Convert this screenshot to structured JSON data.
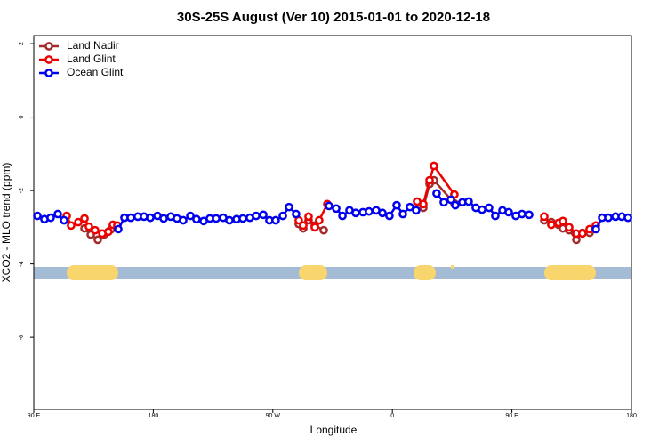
{
  "chart_data": {
    "type": "line",
    "title": "30S-25S August (Ver 10)   2015-01-01 to 2020-12-18",
    "xlabel": "Longitude",
    "ylabel": "XCO2 - MLO trend (ppm)",
    "xlim": [
      90,
      540
    ],
    "ylim": [
      -7.96,
      2.22
    ],
    "xticks": [
      {
        "value": 90,
        "label": "90 E"
      },
      180,
      {
        "value": 270,
        "label": "90 W"
      },
      {
        "value": 360,
        "label": "0"
      },
      {
        "value": 450,
        "label": "90 E"
      },
      {
        "value": 540,
        "label": "180"
      }
    ],
    "yticks": [
      2,
      0,
      -2,
      -4,
      -6
    ],
    "legend": "top-left",
    "series": [
      {
        "name": "Land Nadir",
        "color": "#a52a2a",
        "x": [
          128.2,
          132.9,
          138.2,
          142.9,
          148.3,
          220,
          289.5,
          292.9,
          296.9,
          301.6,
          308.3,
          350,
          383.3,
          388.0,
          391.3,
          406.7,
          450,
          474.4,
          479.7,
          485.1,
          488.4,
          493.1,
          498.5,
          503.1,
          508.5
        ],
        "values": [
          -3.03,
          -3.2,
          -3.34,
          -3.2,
          -3.05,
          null,
          -2.91,
          -3.03,
          -2.81,
          -2.95,
          -3.08,
          null,
          -2.47,
          -1.82,
          -1.72,
          -2.35,
          null,
          -2.81,
          -2.86,
          -2.93,
          -3.03,
          -3.08,
          -3.34,
          -3.15,
          -3.15
        ]
      },
      {
        "name": "Land Glint",
        "color": "#ee0000",
        "x": [
          114.8,
          118.1,
          123.5,
          128.2,
          131.5,
          136.2,
          141.6,
          146.2,
          149.6,
          152.9,
          220,
          289.5,
          292.9,
          296.9,
          301.6,
          304.9,
          311.0,
          350,
          378.6,
          383.3,
          388.0,
          391.3,
          406.7,
          450,
          474.4,
          479.7,
          485.1,
          488.4,
          493.1,
          498.5,
          503.1,
          508.5,
          513.2
        ],
        "values": [
          -2.69,
          -2.95,
          -2.86,
          -2.76,
          -2.98,
          -3.08,
          -3.17,
          -3.12,
          -2.93,
          -2.95,
          null,
          -2.81,
          -2.95,
          -2.71,
          -3.0,
          -2.81,
          -2.37,
          null,
          -2.3,
          -2.37,
          -1.72,
          -1.33,
          -2.11,
          null,
          -2.71,
          -2.93,
          -2.88,
          -2.83,
          -3.0,
          -3.17,
          -3.17,
          -3.05,
          -2.95
        ]
      },
      {
        "name": "Ocean Glint",
        "color": "#0000ee",
        "x": [
          92.7,
          98.0,
          102.7,
          108.1,
          112.8,
          130,
          153.6,
          158.3,
          163.0,
          168.3,
          173.0,
          177.7,
          183.1,
          187.8,
          193.1,
          197.8,
          202.5,
          207.9,
          212.5,
          217.9,
          222.6,
          227.3,
          232.6,
          237.3,
          242.7,
          247.4,
          252.7,
          257.4,
          262.8,
          267.4,
          272.1,
          277.5,
          282.2,
          287.5,
          300,
          312.3,
          317.7,
          322.4,
          327.7,
          332.4,
          337.8,
          342.4,
          347.8,
          352.5,
          357.8,
          363.2,
          367.9,
          373.2,
          377.9,
          385,
          393.3,
          398.7,
          404.0,
          407.4,
          412.7,
          417.4,
          422.8,
          427.5,
          432.8,
          437.5,
          442.9,
          447.6,
          452.9,
          457.6,
          463.0,
          490,
          513.2,
          517.9,
          522.6,
          528.0,
          532.7,
          537.4
        ],
        "values": [
          -2.69,
          -2.78,
          -2.74,
          -2.64,
          -2.81,
          null,
          -3.05,
          -2.74,
          -2.74,
          -2.71,
          -2.71,
          -2.74,
          -2.69,
          -2.76,
          -2.71,
          -2.76,
          -2.81,
          -2.69,
          -2.78,
          -2.83,
          -2.76,
          -2.76,
          -2.74,
          -2.81,
          -2.78,
          -2.76,
          -2.74,
          -2.69,
          -2.66,
          -2.81,
          -2.81,
          -2.69,
          -2.45,
          -2.64,
          null,
          -2.42,
          -2.49,
          -2.69,
          -2.54,
          -2.61,
          -2.59,
          -2.57,
          -2.54,
          -2.61,
          -2.69,
          -2.4,
          -2.64,
          -2.45,
          -2.54,
          null,
          -2.08,
          -2.32,
          -2.25,
          -2.4,
          -2.32,
          -2.3,
          -2.47,
          -2.52,
          -2.47,
          -2.69,
          -2.54,
          -2.59,
          -2.69,
          -2.64,
          -2.66,
          null,
          -3.05,
          -2.74,
          -2.74,
          -2.71,
          -2.71,
          -2.74
        ]
      }
    ]
  }
}
